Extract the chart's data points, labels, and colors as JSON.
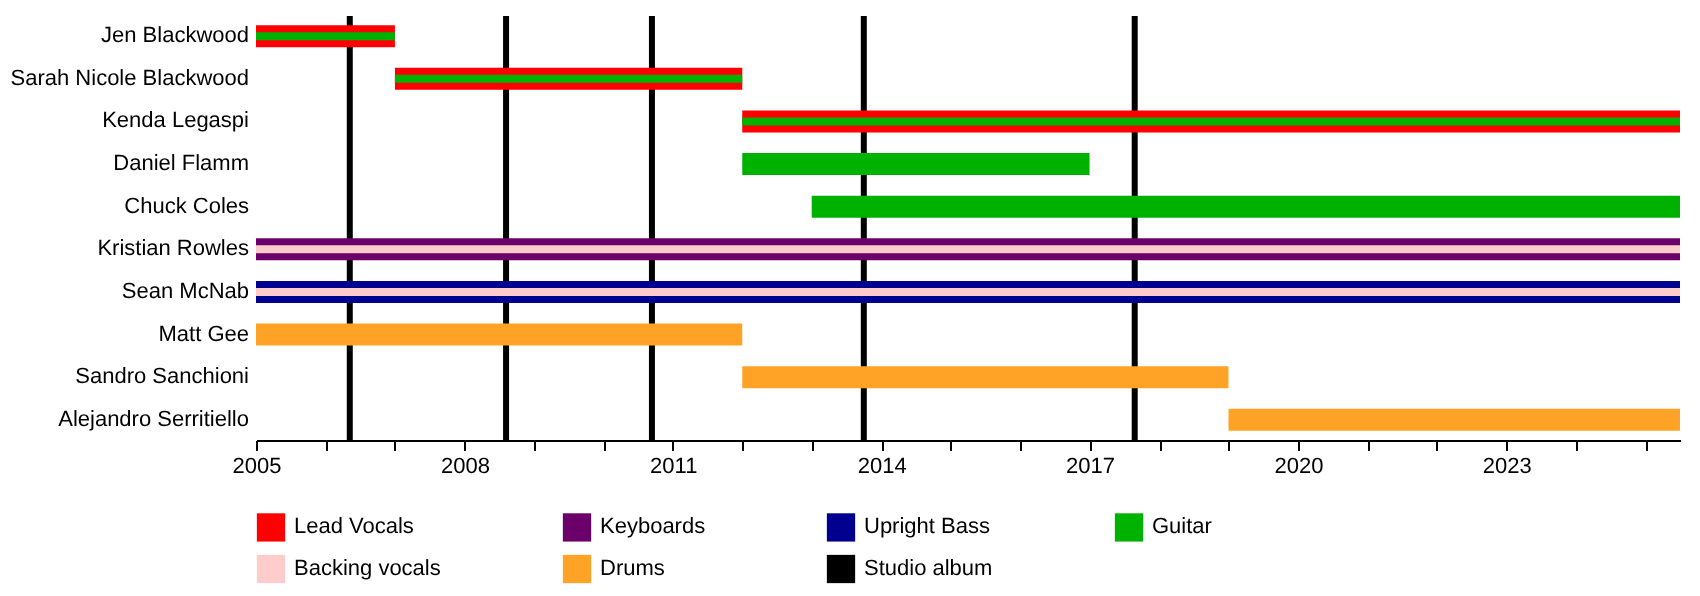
{
  "chart_data": {
    "type": "bar",
    "orientation": "horizontal",
    "categories": [
      "Jen Blackwood",
      "Sarah Nicole Blackwood",
      "Kenda Legaspi",
      "Daniel Flamm",
      "Chuck Coles",
      "Kristian Rowles",
      "Sean McNab",
      "Matt Gee",
      "Sandro Sanchioni",
      "Alejandro Serritiello"
    ],
    "series": [
      {
        "name": "Lead Vocals",
        "color": "#ff0000",
        "base": [
          2005,
          2007,
          2012,
          null,
          null,
          null,
          null,
          null,
          null,
          null
        ],
        "values": [
          2,
          5,
          13.5,
          null,
          null,
          null,
          null,
          null,
          null,
          null
        ]
      },
      {
        "name": "Keyboards",
        "color": "#6b006b",
        "base": [
          null,
          null,
          null,
          null,
          null,
          2005,
          null,
          null,
          null,
          null
        ],
        "values": [
          null,
          null,
          null,
          null,
          null,
          20.5,
          null,
          null,
          null,
          null
        ]
      },
      {
        "name": "Upright Bass",
        "color": "#000090",
        "base": [
          null,
          null,
          null,
          null,
          null,
          null,
          2005,
          null,
          null,
          null
        ],
        "values": [
          null,
          null,
          null,
          null,
          null,
          null,
          20.5,
          null,
          null,
          null
        ]
      },
      {
        "name": "Guitar",
        "color": "#00b200",
        "base": [
          2005,
          2007,
          2012,
          2012,
          2013,
          null,
          null,
          null,
          null,
          null
        ],
        "values": [
          2,
          5,
          13.5,
          5,
          12.5,
          null,
          null,
          null,
          null,
          null
        ]
      },
      {
        "name": "Backing vocals",
        "color": "#ffcccc",
        "base": [
          null,
          null,
          null,
          null,
          null,
          2005,
          2005,
          null,
          null,
          null
        ],
        "values": [
          null,
          null,
          null,
          null,
          null,
          20.5,
          20.5,
          null,
          null,
          null
        ]
      },
      {
        "name": "Drums",
        "color": "#ffa327",
        "base": [
          null,
          null,
          null,
          null,
          null,
          null,
          null,
          2005,
          2012,
          2019
        ],
        "values": [
          null,
          null,
          null,
          null,
          null,
          null,
          null,
          7,
          7,
          6.5
        ]
      }
    ],
    "ref_lines": [
      {
        "axis": "x",
        "value": 2006.35,
        "label": "Studio album",
        "color": "#000000"
      },
      {
        "axis": "x",
        "value": 2008.6,
        "color": "#000000"
      },
      {
        "axis": "x",
        "value": 2010.7,
        "color": "#000000"
      },
      {
        "axis": "x",
        "value": 2013.75,
        "color": "#000000"
      },
      {
        "axis": "x",
        "value": 2017.65,
        "color": "#000000"
      }
    ],
    "xlim": [
      2005,
      2025.5
    ],
    "xticks": [
      2005,
      {
        "value": 2006,
        "label": null
      },
      {
        "value": 2007,
        "label": null
      },
      2008,
      {
        "value": 2009,
        "label": null
      },
      {
        "value": 2010,
        "label": null
      },
      2011,
      {
        "value": 2012,
        "label": null
      },
      {
        "value": 2013,
        "label": null
      },
      2014,
      {
        "value": 2015,
        "label": null
      },
      {
        "value": 2016,
        "label": null
      },
      2017,
      {
        "value": 2018,
        "label": null
      },
      {
        "value": 2019,
        "label": null
      },
      2020,
      {
        "value": 2021,
        "label": null
      },
      {
        "value": 2022,
        "label": null
      },
      2023,
      {
        "value": 2024,
        "label": null
      },
      {
        "value": 2025,
        "label": null
      }
    ],
    "legend": "bottom",
    "grid": false
  }
}
